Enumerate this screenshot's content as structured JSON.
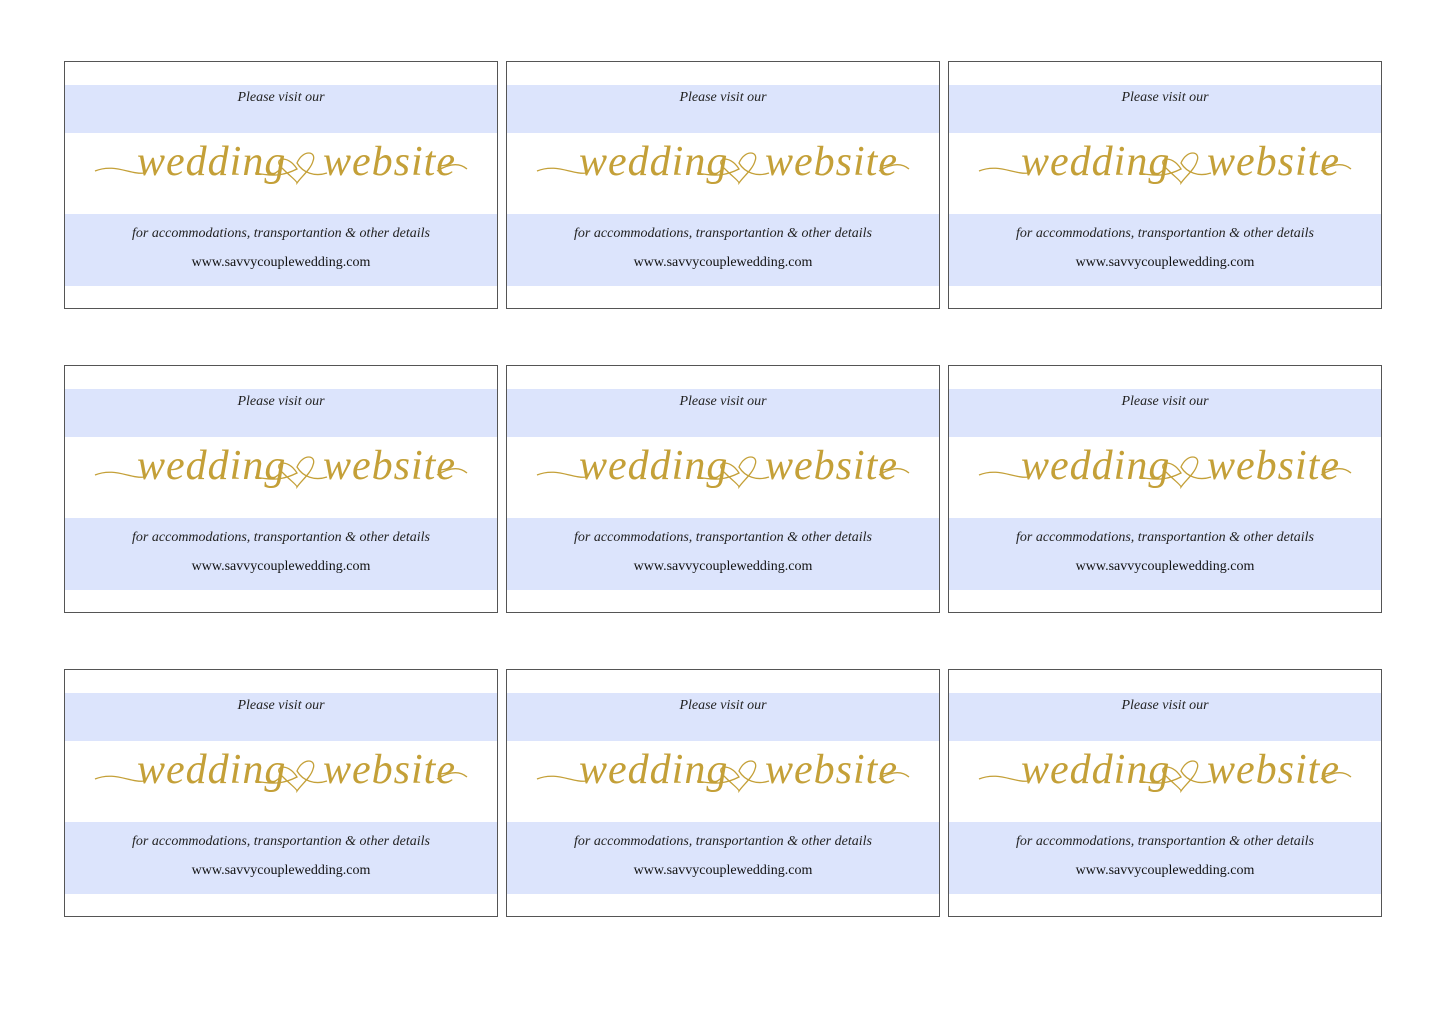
{
  "cards": [
    {
      "intro": "Please visit our",
      "script_left": "wedding",
      "script_right": "website",
      "details": "for accommodations, transportantion & other details",
      "url": "www.savvycouplewedding.com"
    },
    {
      "intro": "Please visit our",
      "script_left": "wedding",
      "script_right": "website",
      "details": "for accommodations, transportantion & other details",
      "url": "www.savvycouplewedding.com"
    },
    {
      "intro": "Please visit our",
      "script_left": "wedding",
      "script_right": "website",
      "details": "for accommodations, transportantion & other details",
      "url": "www.savvycouplewedding.com"
    },
    {
      "intro": "Please visit our",
      "script_left": "wedding",
      "script_right": "website",
      "details": "for accommodations, transportantion & other details",
      "url": "www.savvycouplewedding.com"
    },
    {
      "intro": "Please visit our",
      "script_left": "wedding",
      "script_right": "website",
      "details": "for accommodations, transportantion & other details",
      "url": "www.savvycouplewedding.com"
    },
    {
      "intro": "Please visit our",
      "script_left": "wedding",
      "script_right": "website",
      "details": "for accommodations, transportantion & other details",
      "url": "www.savvycouplewedding.com"
    },
    {
      "intro": "Please visit our",
      "script_left": "wedding",
      "script_right": "website",
      "details": "for accommodations, transportantion & other details",
      "url": "www.savvycouplewedding.com"
    },
    {
      "intro": "Please visit our",
      "script_left": "wedding",
      "script_right": "website",
      "details": "for accommodations, transportantion & other details",
      "url": "www.savvycouplewedding.com"
    },
    {
      "intro": "Please visit our",
      "script_left": "wedding",
      "script_right": "website",
      "details": "for accommodations, transportantion & other details",
      "url": "www.savvycouplewedding.com"
    }
  ]
}
